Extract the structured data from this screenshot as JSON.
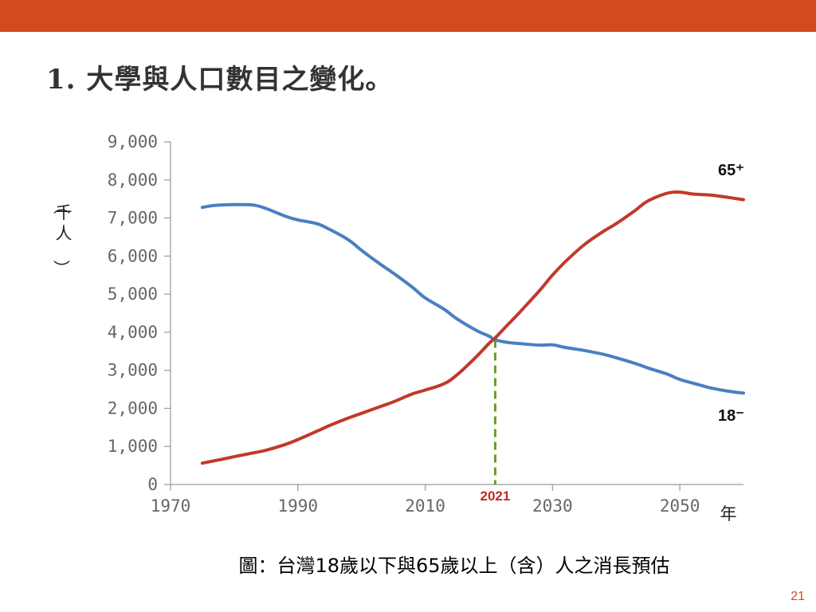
{
  "slide": {
    "title": "1. 大學與人口數目之變化。",
    "caption": "圖：台灣18歲以下與65歲以上（含）人之消長預估",
    "page_number": "21",
    "accent_color": "#d24a1f"
  },
  "chart_data": {
    "type": "line",
    "ylabel": "（千人）",
    "xlabel": "年",
    "xlim": [
      1970,
      2060
    ],
    "ylim": [
      0,
      9000
    ],
    "x_ticks": [
      1970,
      1990,
      2010,
      2030,
      2050
    ],
    "y_ticks": [
      0,
      1000,
      2000,
      3000,
      4000,
      5000,
      6000,
      7000,
      8000,
      9000
    ],
    "y_tick_labels": [
      "0",
      "1,000",
      "2,000",
      "3,000",
      "4,000",
      "5,000",
      "6,000",
      "7,000",
      "8,000",
      "9,000"
    ],
    "grid": false,
    "marker_line": {
      "x": 2021,
      "label": "2021",
      "color": "#6a9a2a"
    },
    "series": [
      {
        "name": "18⁻",
        "color": "#4a7fc1",
        "x": [
          1975,
          1977,
          1980,
          1983,
          1985,
          1988,
          1990,
          1993,
          1995,
          1998,
          2000,
          2003,
          2005,
          2008,
          2010,
          2013,
          2015,
          2018,
          2020,
          2021,
          2023,
          2025,
          2028,
          2030,
          2032,
          2035,
          2038,
          2040,
          2043,
          2045,
          2048,
          2050,
          2053,
          2055,
          2058,
          2060
        ],
        "values": [
          7280,
          7330,
          7350,
          7340,
          7250,
          7050,
          6950,
          6850,
          6700,
          6420,
          6150,
          5780,
          5550,
          5180,
          4900,
          4600,
          4350,
          4050,
          3900,
          3800,
          3730,
          3700,
          3660,
          3670,
          3600,
          3520,
          3420,
          3330,
          3180,
          3060,
          2900,
          2760,
          2620,
          2530,
          2440,
          2400
        ]
      },
      {
        "name": "65⁺",
        "color": "#c0392b",
        "x": [
          1975,
          1978,
          1980,
          1983,
          1985,
          1988,
          1990,
          1993,
          1995,
          1998,
          2000,
          2003,
          2005,
          2008,
          2010,
          2013,
          2015,
          2018,
          2020,
          2021,
          2023,
          2025,
          2028,
          2030,
          2032,
          2035,
          2038,
          2040,
          2043,
          2045,
          2048,
          2050,
          2052,
          2055,
          2058,
          2060
        ],
        "values": [
          560,
          660,
          730,
          830,
          900,
          1050,
          1180,
          1400,
          1550,
          1750,
          1870,
          2050,
          2170,
          2380,
          2480,
          2650,
          2880,
          3350,
          3700,
          3850,
          4200,
          4550,
          5100,
          5500,
          5850,
          6300,
          6650,
          6850,
          7200,
          7450,
          7650,
          7680,
          7630,
          7600,
          7530,
          7480
        ]
      }
    ]
  }
}
